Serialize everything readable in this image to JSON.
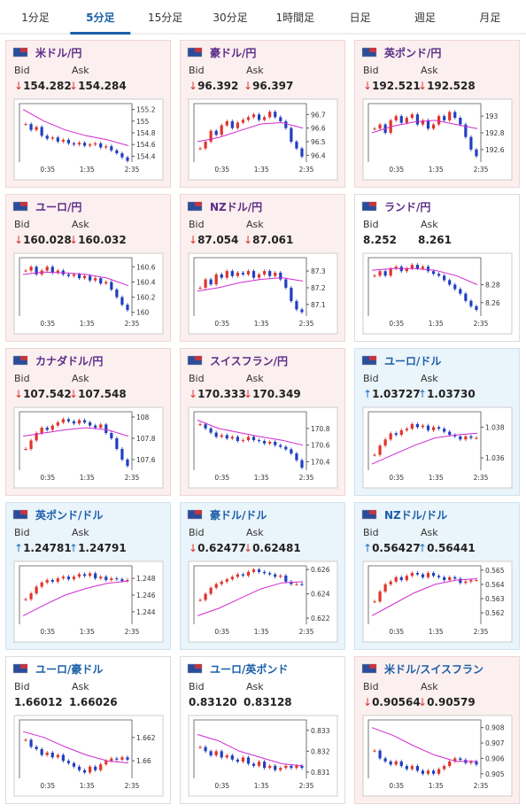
{
  "tabs": [
    "1分足",
    "5分足",
    "15分足",
    "30分足",
    "1時間足",
    "日足",
    "週足",
    "月足"
  ],
  "active_tab": 1,
  "labels": {
    "bid": "Bid",
    "ask": "Ask"
  },
  "xticks": [
    "0:35",
    "1:35",
    "2:35"
  ],
  "cards": [
    {
      "pair": "米ドル/円",
      "arrow": "↓",
      "arrow_color": "#d9342b",
      "bid": "154.282",
      "ask": "154.284",
      "bg": "#fcefef",
      "border": "#f1d5d5",
      "name_color": "#5a2d88",
      "chart": {
        "ylim": [
          154.3,
          155.3
        ],
        "yticks": [
          155.2,
          155,
          154.8,
          154.6,
          154.4
        ],
        "prices": [
          154.95,
          154.85,
          154.9,
          154.75,
          154.7,
          154.72,
          154.65,
          154.68,
          154.62,
          154.6,
          154.63,
          154.58,
          154.6,
          154.62,
          154.55,
          154.57,
          154.5,
          154.45,
          154.38,
          154.32
        ],
        "ma": [
          155.2,
          155.0,
          154.85,
          154.75,
          154.68,
          154.58
        ]
      }
    },
    {
      "pair": "豪ドル/円",
      "arrow": "↓",
      "arrow_color": "#d9342b",
      "bid": "96.392",
      "ask": "96.397",
      "bg": "#fcefef",
      "border": "#f1d5d5",
      "name_color": "#5a2d88",
      "chart": {
        "ylim": [
          96.35,
          96.78
        ],
        "yticks": [
          96.7,
          96.6,
          96.5,
          96.4
        ],
        "prices": [
          96.45,
          96.5,
          96.58,
          96.55,
          96.62,
          96.65,
          96.6,
          96.64,
          96.66,
          96.68,
          96.7,
          96.66,
          96.68,
          96.72,
          96.68,
          96.65,
          96.6,
          96.5,
          96.45,
          96.39
        ],
        "ma": [
          96.5,
          96.53,
          96.58,
          96.63,
          96.64,
          96.6
        ]
      }
    },
    {
      "pair": "英ポンド/円",
      "arrow": "↓",
      "arrow_color": "#d9342b",
      "bid": "192.521",
      "ask": "192.528",
      "bg": "#fcefef",
      "border": "#f1d5d5",
      "name_color": "#5a2d88",
      "chart": {
        "ylim": [
          192.45,
          193.15
        ],
        "yticks": [
          193,
          192.8,
          192.6
        ],
        "prices": [
          192.85,
          192.9,
          192.8,
          192.95,
          193.0,
          192.92,
          192.98,
          193.02,
          192.9,
          192.95,
          192.85,
          192.9,
          193.0,
          192.95,
          193.05,
          192.98,
          192.9,
          192.75,
          192.6,
          192.52
        ],
        "ma": [
          192.8,
          192.88,
          192.93,
          192.95,
          192.9,
          192.85
        ]
      }
    },
    {
      "pair": "ユーロ/円",
      "arrow": "↓",
      "arrow_color": "#d9342b",
      "bid": "160.028",
      "ask": "160.032",
      "bg": "#fcefef",
      "border": "#f1d5d5",
      "name_color": "#5a2d88",
      "chart": {
        "ylim": [
          159.95,
          160.72
        ],
        "yticks": [
          160.6,
          160.4,
          160.2,
          160
        ],
        "prices": [
          160.55,
          160.6,
          160.5,
          160.55,
          160.6,
          160.52,
          160.55,
          160.5,
          160.48,
          160.5,
          160.45,
          160.48,
          160.42,
          160.45,
          160.38,
          160.4,
          160.3,
          160.2,
          160.1,
          160.03
        ],
        "ma": [
          160.5,
          160.53,
          160.52,
          160.5,
          160.45,
          160.35
        ]
      }
    },
    {
      "pair": "NZドル/円",
      "arrow": "↓",
      "arrow_color": "#d9342b",
      "bid": "87.054",
      "ask": "87.061",
      "bg": "#fcefef",
      "border": "#f1d5d5",
      "name_color": "#5a2d88",
      "chart": {
        "ylim": [
          87.03,
          87.38
        ],
        "yticks": [
          87.3,
          87.2,
          87.1
        ],
        "prices": [
          87.2,
          87.25,
          87.22,
          87.28,
          87.26,
          87.3,
          87.27,
          87.29,
          87.28,
          87.3,
          87.26,
          87.28,
          87.3,
          87.27,
          87.29,
          87.25,
          87.2,
          87.12,
          87.07,
          87.054
        ],
        "ma": [
          87.18,
          87.2,
          87.23,
          87.25,
          87.26,
          87.24
        ]
      }
    },
    {
      "pair": "ランド/円",
      "arrow": null,
      "arrow_color": "#333333",
      "bid": "8.252",
      "ask": "8.261",
      "bg": "#ffffff",
      "border": "#dddddd",
      "name_color": "#5a2d88",
      "chart": {
        "ylim": [
          8.245,
          8.31
        ],
        "yticks": [
          8.28,
          8.26
        ],
        "prices": [
          8.29,
          8.295,
          8.29,
          8.298,
          8.3,
          8.295,
          8.298,
          8.302,
          8.298,
          8.3,
          8.295,
          8.292,
          8.29,
          8.285,
          8.28,
          8.275,
          8.27,
          8.262,
          8.256,
          8.252
        ],
        "ma": [
          8.296,
          8.298,
          8.298,
          8.296,
          8.29,
          8.28
        ]
      }
    },
    {
      "pair": "カナダドル/円",
      "arrow": "↓",
      "arrow_color": "#d9342b",
      "bid": "107.542",
      "ask": "107.548",
      "bg": "#fcefef",
      "border": "#f1d5d5",
      "name_color": "#5a2d88",
      "chart": {
        "ylim": [
          107.5,
          108.05
        ],
        "yticks": [
          108,
          107.8,
          107.6
        ],
        "prices": [
          107.7,
          107.78,
          107.85,
          107.9,
          107.88,
          107.92,
          107.95,
          107.98,
          107.96,
          107.94,
          107.97,
          107.95,
          107.92,
          107.9,
          107.93,
          107.85,
          107.8,
          107.7,
          107.6,
          107.54
        ],
        "ma": [
          107.82,
          107.85,
          107.88,
          107.9,
          107.88,
          107.82
        ]
      }
    },
    {
      "pair": "スイスフラン/円",
      "arrow": "↓",
      "arrow_color": "#d9342b",
      "bid": "170.333",
      "ask": "170.349",
      "bg": "#fcefef",
      "border": "#f1d5d5",
      "name_color": "#5a2d88",
      "chart": {
        "ylim": [
          170.3,
          171.0
        ],
        "yticks": [
          170.8,
          170.6,
          170.4
        ],
        "prices": [
          170.85,
          170.8,
          170.75,
          170.7,
          170.72,
          170.68,
          170.7,
          170.65,
          170.66,
          170.7,
          170.66,
          170.65,
          170.62,
          170.64,
          170.6,
          170.58,
          170.55,
          170.5,
          170.42,
          170.33
        ],
        "ma": [
          170.9,
          170.8,
          170.75,
          170.7,
          170.66,
          170.6
        ]
      }
    },
    {
      "pair": "ユーロ/ドル",
      "arrow": "↑",
      "arrow_color": "#1f6fc1",
      "bid": "1.03727",
      "ask": "1.03730",
      "bg": "#eaf4fb",
      "border": "#cfe3f0",
      "name_color": "#1a5fa8",
      "chart": {
        "ylim": [
          1.0352,
          1.039
        ],
        "yticks": [
          1.038,
          1.036
        ],
        "prices": [
          1.0362,
          1.0368,
          1.0372,
          1.0376,
          1.0375,
          1.0378,
          1.0379,
          1.0382,
          1.038,
          1.0381,
          1.0378,
          1.038,
          1.0379,
          1.0377,
          1.0375,
          1.0374,
          1.0372,
          1.0374,
          1.0373,
          1.0373
        ],
        "ma": [
          1.0356,
          1.0362,
          1.0368,
          1.0373,
          1.0375,
          1.0376
        ]
      }
    },
    {
      "pair": "英ポンド/ドル",
      "arrow": "↑",
      "arrow_color": "#1f6fc1",
      "bid": "1.24781",
      "ask": "1.24791",
      "bg": "#eaf4fb",
      "border": "#cfe3f0",
      "name_color": "#1a5fa8",
      "chart": {
        "ylim": [
          1.2425,
          1.2495
        ],
        "yticks": [
          1.248,
          1.246,
          1.244
        ],
        "prices": [
          1.2455,
          1.2462,
          1.247,
          1.2475,
          1.2478,
          1.2476,
          1.248,
          1.2482,
          1.2479,
          1.2482,
          1.2485,
          1.2483,
          1.2486,
          1.248,
          1.2482,
          1.2478,
          1.248,
          1.2479,
          1.2477,
          1.2478
        ],
        "ma": [
          1.2435,
          1.2448,
          1.246,
          1.2468,
          1.2474,
          1.2477
        ]
      }
    },
    {
      "pair": "豪ドル/ドル",
      "arrow": "↓",
      "arrow_color": "#d9342b",
      "bid": "0.62477",
      "ask": "0.62481",
      "bg": "#eaf4fb",
      "border": "#cfe3f0",
      "name_color": "#1a5fa8",
      "chart": {
        "ylim": [
          0.6215,
          0.6263
        ],
        "yticks": [
          0.626,
          0.624,
          0.622
        ],
        "prices": [
          0.6235,
          0.624,
          0.6245,
          0.6248,
          0.625,
          0.6252,
          0.6254,
          0.6256,
          0.6255,
          0.6258,
          0.626,
          0.6258,
          0.6257,
          0.6256,
          0.6254,
          0.6255,
          0.625,
          0.6248,
          0.6248,
          0.62477
        ],
        "ma": [
          0.6222,
          0.6228,
          0.6236,
          0.6244,
          0.6249,
          0.625
        ]
      }
    },
    {
      "pair": "NZドル/ドル",
      "arrow": "↑",
      "arrow_color": "#1f6fc1",
      "bid": "0.56427",
      "ask": "0.56441",
      "bg": "#eaf4fb",
      "border": "#cfe3f0",
      "name_color": "#1a5fa8",
      "chart": {
        "ylim": [
          0.5612,
          0.5653
        ],
        "yticks": [
          0.565,
          0.564,
          0.563,
          0.562
        ],
        "prices": [
          0.5628,
          0.5635,
          0.564,
          0.5642,
          0.5645,
          0.5643,
          0.5646,
          0.5648,
          0.5647,
          0.5645,
          0.5648,
          0.5646,
          0.5645,
          0.5643,
          0.5645,
          0.5644,
          0.5641,
          0.5642,
          0.5643,
          0.5643
        ],
        "ma": [
          0.5618,
          0.5626,
          0.5634,
          0.564,
          0.5643,
          0.5644
        ]
      }
    },
    {
      "pair": "ユーロ/豪ドル",
      "arrow": null,
      "arrow_color": "#333333",
      "bid": "1.66012",
      "ask": "1.66026",
      "bg": "#ffffff",
      "border": "#dddddd",
      "name_color": "#1a5fa8",
      "chart": {
        "ylim": [
          1.6585,
          1.6635
        ],
        "yticks": [
          1.662,
          1.66
        ],
        "prices": [
          1.6618,
          1.6612,
          1.661,
          1.6605,
          1.6607,
          1.6603,
          1.6605,
          1.66,
          1.6598,
          1.6595,
          1.6592,
          1.659,
          1.6595,
          1.6592,
          1.6597,
          1.66,
          1.6602,
          1.6601,
          1.6603,
          1.6601
        ],
        "ma": [
          1.6625,
          1.662,
          1.6612,
          1.6605,
          1.66,
          1.6598
        ]
      }
    },
    {
      "pair": "ユーロ/英ポンド",
      "arrow": null,
      "arrow_color": "#333333",
      "bid": "0.83120",
      "ask": "0.83128",
      "bg": "#ffffff",
      "border": "#dddddd",
      "name_color": "#1a5fa8",
      "chart": {
        "ylim": [
          0.8307,
          0.8335
        ],
        "yticks": [
          0.833,
          0.832,
          0.831
        ],
        "prices": [
          0.8322,
          0.832,
          0.8318,
          0.832,
          0.8317,
          0.8318,
          0.8316,
          0.8315,
          0.8317,
          0.8314,
          0.8313,
          0.8315,
          0.8312,
          0.8313,
          0.8311,
          0.8312,
          0.8313,
          0.8312,
          0.8313,
          0.8312
        ],
        "ma": [
          0.8328,
          0.8325,
          0.832,
          0.8317,
          0.8314,
          0.8313
        ]
      }
    },
    {
      "pair": "米ドル/スイスフラン",
      "arrow": "↓",
      "arrow_color": "#d9342b",
      "bid": "0.90564",
      "ask": "0.90579",
      "bg": "#fcefef",
      "border": "#f1d5d5",
      "name_color": "#1a5fa8",
      "chart": {
        "ylim": [
          0.9047,
          0.9085
        ],
        "yticks": [
          0.908,
          0.907,
          0.906,
          0.905
        ],
        "prices": [
          0.9065,
          0.906,
          0.9058,
          0.9056,
          0.9058,
          0.9055,
          0.9053,
          0.9055,
          0.9052,
          0.905,
          0.9052,
          0.905,
          0.9053,
          0.9055,
          0.9058,
          0.906,
          0.9059,
          0.9057,
          0.9058,
          0.9056
        ],
        "ma": [
          0.908,
          0.9075,
          0.9068,
          0.9062,
          0.9058,
          0.9058
        ]
      }
    }
  ]
}
